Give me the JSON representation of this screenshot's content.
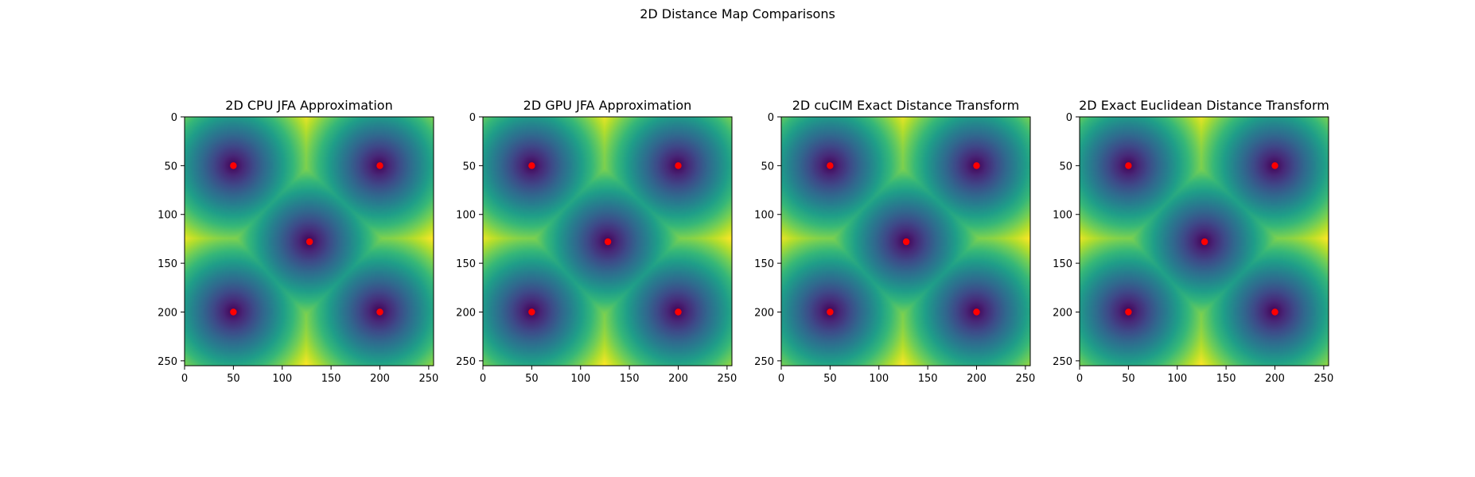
{
  "figure": {
    "suptitle": "2D Distance Map Comparisons"
  },
  "colors": {
    "colormap": "viridis",
    "seed_marker": "#ff0000",
    "axes_frame": "#000000"
  },
  "chart_data": [
    {
      "type": "heatmap",
      "title": "2D CPU JFA Approximation",
      "grid_size": [
        256,
        256
      ],
      "xlim": [
        0,
        255
      ],
      "ylim": [
        255,
        0
      ],
      "xticks": [
        0,
        50,
        100,
        150,
        200,
        250
      ],
      "yticks": [
        0,
        50,
        100,
        150,
        200,
        250
      ],
      "seeds": [
        {
          "x": 50,
          "y": 50
        },
        {
          "x": 200,
          "y": 50
        },
        {
          "x": 128,
          "y": 128
        },
        {
          "x": 50,
          "y": 200
        },
        {
          "x": 200,
          "y": 200
        }
      ],
      "colormap": "viridis",
      "grid": false
    },
    {
      "type": "heatmap",
      "title": "2D GPU JFA Approximation",
      "grid_size": [
        256,
        256
      ],
      "xlim": [
        0,
        255
      ],
      "ylim": [
        255,
        0
      ],
      "xticks": [
        0,
        50,
        100,
        150,
        200,
        250
      ],
      "yticks": [
        0,
        50,
        100,
        150,
        200,
        250
      ],
      "seeds": [
        {
          "x": 50,
          "y": 50
        },
        {
          "x": 200,
          "y": 50
        },
        {
          "x": 128,
          "y": 128
        },
        {
          "x": 50,
          "y": 200
        },
        {
          "x": 200,
          "y": 200
        }
      ],
      "colormap": "viridis",
      "grid": false
    },
    {
      "type": "heatmap",
      "title": "2D cuCIM Exact Distance Transform",
      "grid_size": [
        256,
        256
      ],
      "xlim": [
        0,
        255
      ],
      "ylim": [
        255,
        0
      ],
      "xticks": [
        0,
        50,
        100,
        150,
        200,
        250
      ],
      "yticks": [
        0,
        50,
        100,
        150,
        200,
        250
      ],
      "seeds": [
        {
          "x": 50,
          "y": 50
        },
        {
          "x": 200,
          "y": 50
        },
        {
          "x": 128,
          "y": 128
        },
        {
          "x": 50,
          "y": 200
        },
        {
          "x": 200,
          "y": 200
        }
      ],
      "colormap": "viridis",
      "grid": false
    },
    {
      "type": "heatmap",
      "title": "2D Exact Euclidean Distance Transform",
      "grid_size": [
        256,
        256
      ],
      "xlim": [
        0,
        255
      ],
      "ylim": [
        255,
        0
      ],
      "xticks": [
        0,
        50,
        100,
        150,
        200,
        250
      ],
      "yticks": [
        0,
        50,
        100,
        150,
        200,
        250
      ],
      "seeds": [
        {
          "x": 50,
          "y": 50
        },
        {
          "x": 200,
          "y": 50
        },
        {
          "x": 128,
          "y": 128
        },
        {
          "x": 50,
          "y": 200
        },
        {
          "x": 200,
          "y": 200
        }
      ],
      "colormap": "viridis",
      "grid": false
    }
  ]
}
